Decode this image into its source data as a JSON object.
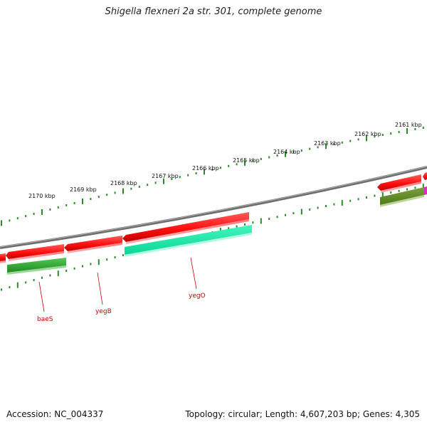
{
  "title": "Shigella flexneri 2a str. 301, complete genome",
  "footer": {
    "accession": "Accession: NC_004337",
    "summary": "Topology: circular; Length: 4,607,203 bp; Genes: 4,305"
  },
  "colors": {
    "backbone": "#8a8a8a",
    "tick": "#2a8a2a",
    "gene_red": "#ff1a1a",
    "gene_green": "#2eaa2e",
    "gene_teal": "#19f0a8",
    "gene_olive": "#5c8a24",
    "gene_magenta": "#e22ad2",
    "label": "#cc0000"
  },
  "scale": {
    "unit": "kbp",
    "labels": [
      "2161 kbp",
      "2162 kbp",
      "2163 kbp",
      "2164 kbp",
      "2165 kbp",
      "2166 kbp",
      "2167 kbp",
      "2168 kbp",
      "2169 kbp",
      "2170 kbp"
    ]
  },
  "genes": [
    {
      "name": "baeS"
    },
    {
      "name": "yegB"
    },
    {
      "name": "yegO"
    }
  ]
}
